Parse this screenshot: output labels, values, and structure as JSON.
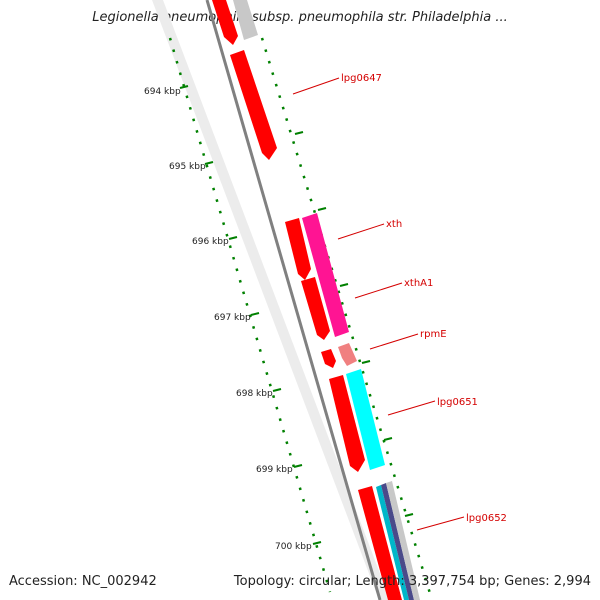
{
  "title": "Legionella pneumophila subsp. pneumophila str. Philadelphia ...",
  "footer": {
    "accession": "Accession: NC_002942",
    "summary": "Topology: circular; Length: 3,397,754 bp; Genes: 2,994"
  },
  "kbp_labels": [
    "694 kbp",
    "695 kbp",
    "696 kbp",
    "697 kbp",
    "698 kbp",
    "699 kbp",
    "700 kbp"
  ],
  "gene_labels": [
    "lpg0647",
    "xth",
    "xthA1",
    "rpmE",
    "lpg0651",
    "lpg0652"
  ],
  "colors": {
    "cds": "#ff0000",
    "xth": "#ff1493",
    "rpmE": "#f08080",
    "lpg0651": "#00ffff",
    "backbone": "#808080",
    "tick": "#008000",
    "label": "#d40000"
  }
}
